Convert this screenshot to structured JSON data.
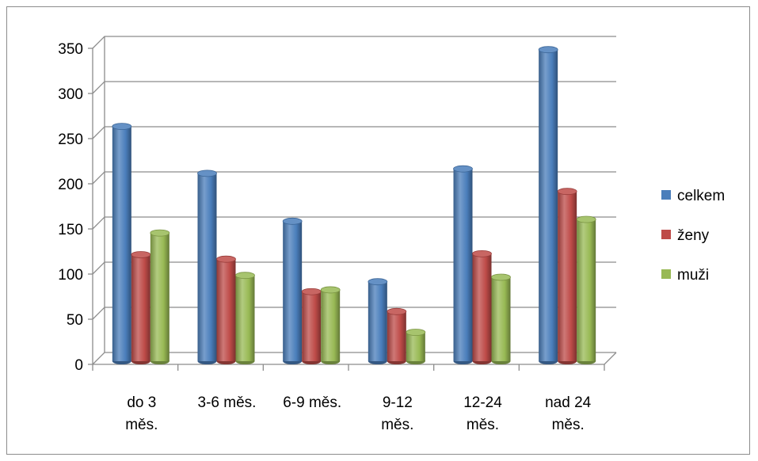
{
  "chart_data": {
    "type": "bar",
    "categories": [
      [
        "do 3",
        "měs."
      ],
      [
        "3-6 měs."
      ],
      [
        "6-9 měs."
      ],
      [
        "9-12",
        "měs."
      ],
      [
        "12-24",
        "měs."
      ],
      [
        "nad 24",
        "měs."
      ]
    ],
    "series": [
      {
        "name": "celkem",
        "color": "#4a7ebb",
        "values": [
          260,
          208,
          155,
          88,
          213,
          345
        ]
      },
      {
        "name": "ženy",
        "color": "#be4b48",
        "values": [
          118,
          113,
          77,
          55,
          119,
          188
        ]
      },
      {
        "name": "muži",
        "color": "#98b954",
        "values": [
          142,
          95,
          79,
          32,
          93,
          157
        ]
      }
    ],
    "yticks": [
      "0",
      "50",
      "100",
      "150",
      "200",
      "250",
      "300",
      "350"
    ],
    "ylim": [
      0,
      350
    ],
    "grid": true,
    "legend_position": "right"
  }
}
